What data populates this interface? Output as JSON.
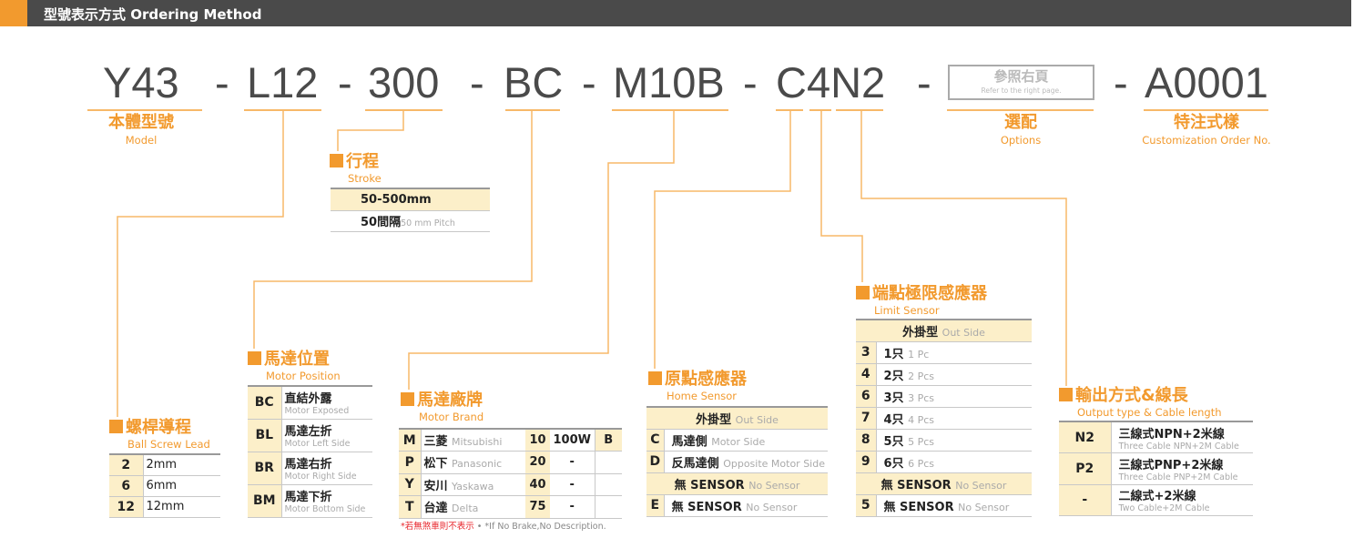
{
  "header": {
    "title": "型號表示方式 Ordering Method"
  },
  "colors": {
    "accent": "#f29a2e",
    "header_bg": "#4a4a4a",
    "cell_bg": "#fcefc9"
  },
  "code": {
    "parts": [
      "Y43",
      "L12",
      "300",
      "BC",
      "M10B",
      "C4N2",
      "A0001"
    ],
    "dash": "-",
    "options_box": {
      "cn": "參照右頁",
      "en": "Refer to the right page."
    }
  },
  "labels": {
    "model": {
      "cn": "本體型號",
      "en": "Model"
    },
    "options": {
      "cn": "選配",
      "en": "Options"
    },
    "custom": {
      "cn": "特注式樣",
      "en": "Customization Order No."
    }
  },
  "ball_screw": {
    "title": "螺桿導程",
    "subtitle": "Ball Screw Lead",
    "rows": [
      {
        "code": "2",
        "desc": "2mm"
      },
      {
        "code": "6",
        "desc": "6mm"
      },
      {
        "code": "12",
        "desc": "12mm"
      }
    ]
  },
  "stroke": {
    "title": "行程",
    "subtitle": "Stroke",
    "range": "50-500mm",
    "pitch_cn": "50間隔",
    "pitch_en": "50 mm Pitch"
  },
  "motor_position": {
    "title": "馬達位置",
    "subtitle": "Motor Position",
    "rows": [
      {
        "code": "BC",
        "cn": "直結外露",
        "en": "Motor Exposed"
      },
      {
        "code": "BL",
        "cn": "馬達左折",
        "en": "Motor Left Side"
      },
      {
        "code": "BR",
        "cn": "馬達右折",
        "en": "Motor Right Side"
      },
      {
        "code": "BM",
        "cn": "馬達下折",
        "en": "Motor Bottom Side"
      }
    ]
  },
  "motor_brand": {
    "title": "馬達廠牌",
    "subtitle": "Motor Brand",
    "rows": [
      {
        "code": "M",
        "cn": "三菱",
        "en": "Mitsubishi",
        "power_code": "10",
        "power": "100W",
        "brake": "B"
      },
      {
        "code": "P",
        "cn": "松下",
        "en": "Panasonic",
        "power_code": "20",
        "power": "-",
        "brake": ""
      },
      {
        "code": "Y",
        "cn": "安川",
        "en": "Yaskawa",
        "power_code": "40",
        "power": "-",
        "brake": ""
      },
      {
        "code": "T",
        "cn": "台達",
        "en": "Delta",
        "power_code": "75",
        "power": "-",
        "brake": ""
      }
    ],
    "note_cn": "*若無煞車則不表示",
    "note_en": "• *If No Brake,No Description."
  },
  "home_sensor": {
    "title": "原點感應器",
    "subtitle": "Home Sensor",
    "group_cn": "外掛型",
    "group_en": "Out Side",
    "rows": [
      {
        "code": "C",
        "cn": "馬達側",
        "en": "Motor Side"
      },
      {
        "code": "D",
        "cn": "反馬達側",
        "en": "Opposite Motor Side"
      }
    ],
    "none_group_cn": "無 SENSOR",
    "none_group_en": "No Sensor",
    "none_row": {
      "code": "E",
      "cn": "無 SENSOR",
      "en": "No Sensor"
    }
  },
  "limit_sensor": {
    "title": "端點極限感應器",
    "subtitle": "Limit Sensor",
    "group_cn": "外掛型",
    "group_en": "Out Side",
    "rows": [
      {
        "code": "3",
        "cn": "1只",
        "en": "1 Pc"
      },
      {
        "code": "4",
        "cn": "2只",
        "en": "2 Pcs"
      },
      {
        "code": "6",
        "cn": "3只",
        "en": "3 Pcs"
      },
      {
        "code": "7",
        "cn": "4只",
        "en": "4 Pcs"
      },
      {
        "code": "8",
        "cn": "5只",
        "en": "5 Pcs"
      },
      {
        "code": "9",
        "cn": "6只",
        "en": "6 Pcs"
      }
    ],
    "none_group_cn": "無 SENSOR",
    "none_group_en": "No Sensor",
    "none_row": {
      "code": "5",
      "cn": "無 SENSOR",
      "en": "No Sensor"
    }
  },
  "output": {
    "title": "輸出方式&線長",
    "subtitle": "Output type & Cable length",
    "rows": [
      {
        "code": "N2",
        "cn": "三線式NPN+2米線",
        "en": "Three Cable NPN+2M Cable"
      },
      {
        "code": "P2",
        "cn": "三線式PNP+2米線",
        "en": "Three Cable PNP+2M Cable"
      },
      {
        "code": "-",
        "cn": "二線式+2米線",
        "en": "Two Cable+2M Cable"
      }
    ]
  }
}
